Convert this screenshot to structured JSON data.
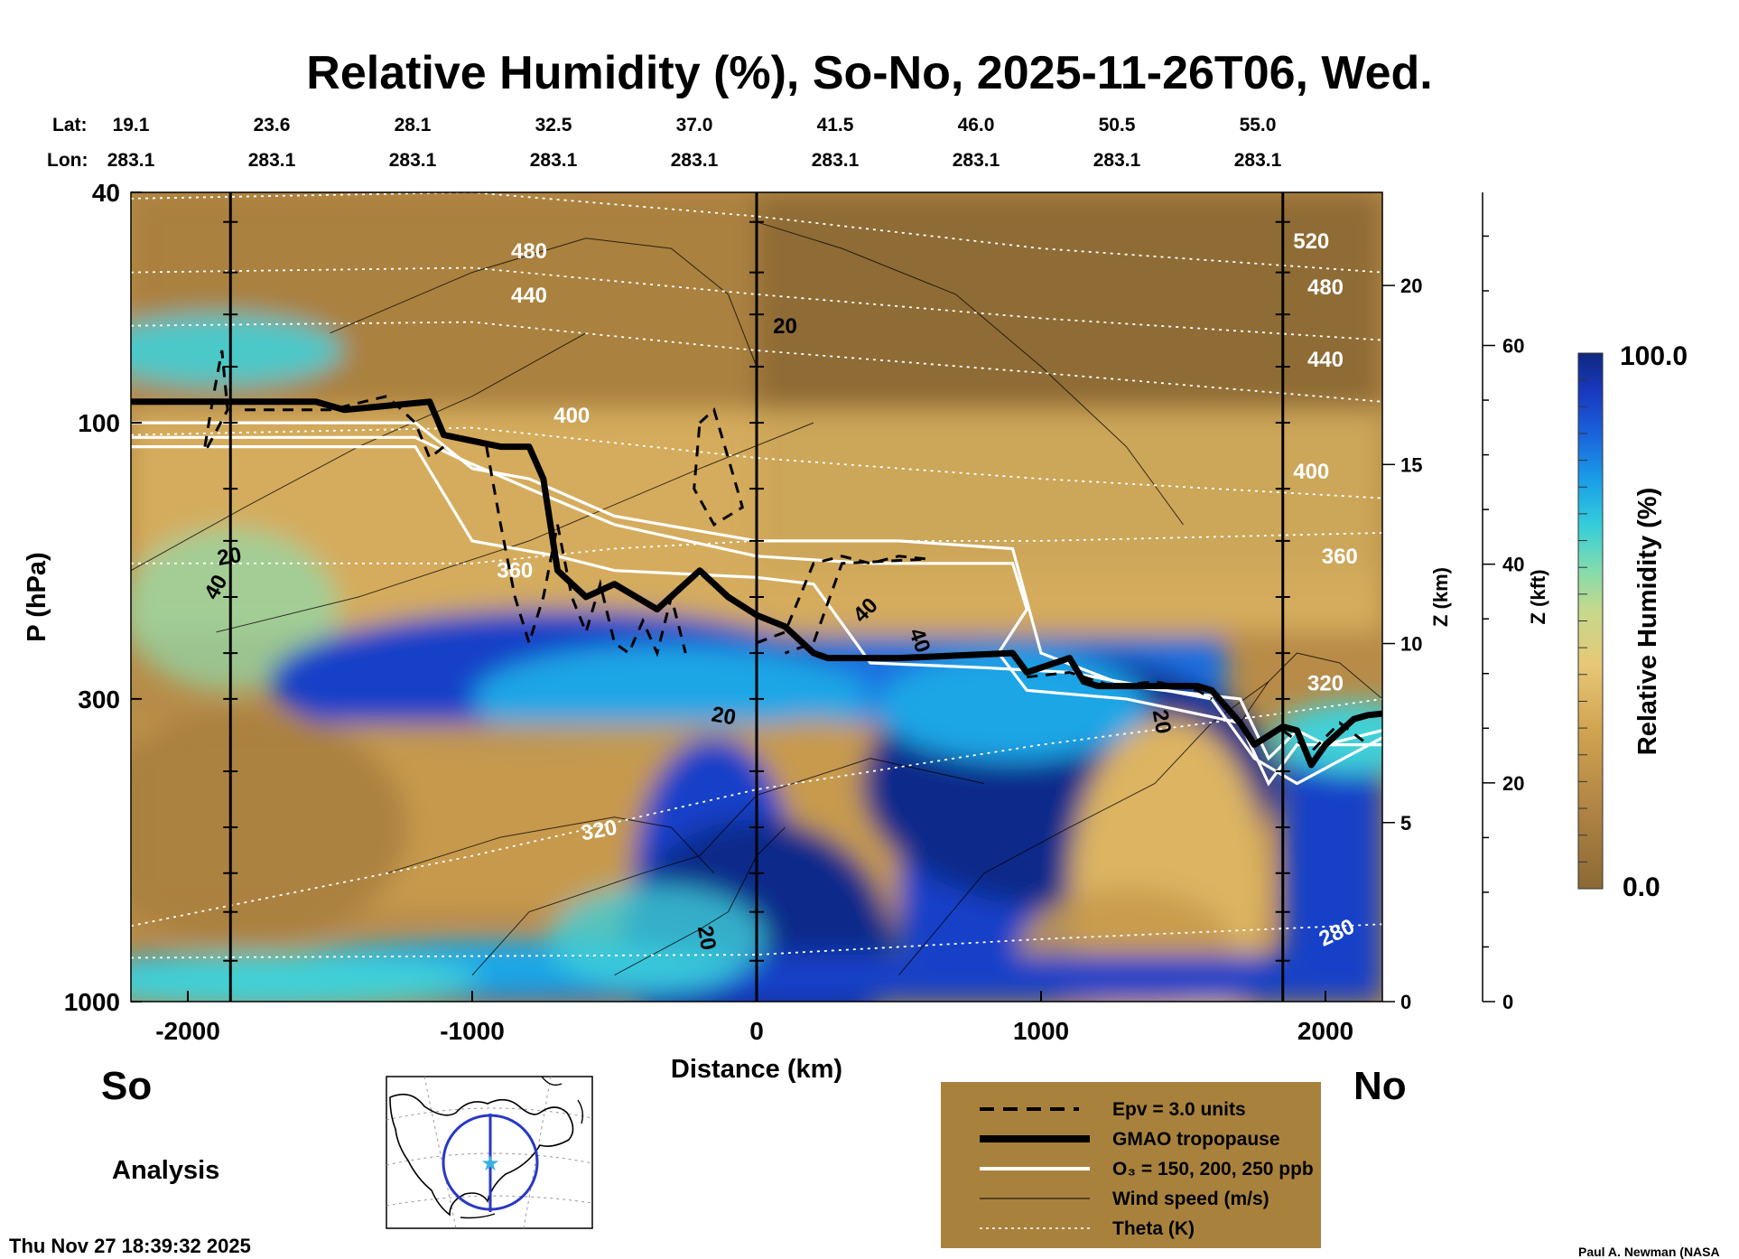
{
  "chart_data": {
    "type": "cross-section",
    "title": "Relative Humidity (%), So-No, 2025-11-26T06, Wed.",
    "header": {
      "lat_label": "Lat:",
      "lon_label": "Lon:",
      "lat": [
        "19.1",
        "23.6",
        "28.1",
        "32.5",
        "37.0",
        "41.5",
        "46.0",
        "50.5",
        "55.0"
      ],
      "lon": [
        "283.1",
        "283.1",
        "283.1",
        "283.1",
        "283.1",
        "283.1",
        "283.1",
        "283.1",
        "283.1"
      ]
    },
    "x_axis": {
      "label": "Distance (km)",
      "range": [
        -2200,
        2200
      ],
      "ticks": [
        "-2000",
        "-1000",
        "0",
        "1000",
        "2000"
      ],
      "tick_values": [
        -2000,
        -1000,
        0,
        1000,
        2000
      ]
    },
    "y_axis": {
      "label": "P (hPa)",
      "scale": "log",
      "range": [
        1000,
        40
      ],
      "ticks": [
        "40",
        "100",
        "300",
        "1000"
      ],
      "tick_values": [
        40,
        100,
        300,
        1000
      ]
    },
    "z_km_axis": {
      "label": "Z (km)",
      "ticks": [
        "0",
        "5",
        "10",
        "15",
        "20"
      ],
      "tick_values": [
        0,
        5,
        10,
        15,
        20
      ]
    },
    "z_kft_axis": {
      "label": "Z (kft)",
      "ticks": [
        "0",
        "20",
        "40",
        "60"
      ],
      "tick_values": [
        0,
        20,
        40,
        60
      ]
    },
    "colorbar": {
      "label": "Relative Humidity (%)",
      "max_label": "100.0",
      "min_label": "0.0",
      "range": [
        0,
        100
      ],
      "colors": [
        "#8b6935",
        "#a97f3f",
        "#c79a4d",
        "#dcb462",
        "#e8c878",
        "#cfd68a",
        "#8fdcae",
        "#3fd0d8",
        "#1aa6e6",
        "#1a6ee0",
        "#1840c8",
        "#102a8a"
      ]
    },
    "vertical_lines_km": [
      -1850,
      0,
      1850
    ],
    "tropopause": {
      "name": "GMAO tropopause",
      "x": [
        -2200,
        -1550,
        -1450,
        -1150,
        -1100,
        -900,
        -800,
        -750,
        -700,
        -600,
        -500,
        -350,
        -200,
        -100,
        0,
        100,
        200,
        250,
        500,
        900,
        950,
        1100,
        1150,
        1200,
        1550,
        1600,
        1700,
        1750,
        1850,
        1900,
        1950,
        2000,
        2100,
        2150,
        2200
      ],
      "p": [
        92,
        92,
        95,
        92,
        105,
        110,
        110,
        125,
        180,
        200,
        190,
        210,
        180,
        200,
        215,
        225,
        250,
        255,
        255,
        250,
        270,
        255,
        280,
        285,
        285,
        290,
        330,
        360,
        335,
        340,
        390,
        360,
        325,
        320,
        318
      ]
    },
    "theta_contours": [
      {
        "label": "280",
        "x": [
          -2200,
          0,
          1000,
          2200
        ],
        "p": [
          840,
          830,
          780,
          735
        ]
      },
      {
        "label": "320",
        "x": [
          -2200,
          -1000,
          0,
          1000,
          1800,
          2200
        ],
        "p": [
          740,
          560,
          430,
          360,
          320,
          300
        ]
      },
      {
        "label": "360",
        "x": [
          -2200,
          -1000,
          -500,
          0,
          1000,
          2200
        ],
        "p": [
          175,
          175,
          165,
          160,
          160,
          155
        ]
      },
      {
        "label": "400",
        "x": [
          -2200,
          -1000,
          0,
          1000,
          2200
        ],
        "p": [
          105,
          102,
          115,
          125,
          135
        ]
      },
      {
        "label": "440",
        "x": [
          -2200,
          -1000,
          0,
          1000,
          2200
        ],
        "p": [
          68,
          67,
          75,
          82,
          92
        ]
      },
      {
        "label": "480",
        "x": [
          -2200,
          -1000,
          0,
          1000,
          2200
        ],
        "p": [
          55,
          54,
          60,
          66,
          72
        ]
      },
      {
        "label": "520",
        "x": [
          -2200,
          -1000,
          0,
          1000,
          2200
        ],
        "p": [
          41,
          40,
          44,
          50,
          55
        ]
      }
    ],
    "wind_speed_labels": [
      "20",
      "20",
      "40",
      "40",
      "20",
      "40",
      "20",
      "20"
    ],
    "location_labels": {
      "left": "So",
      "right": "No"
    },
    "panel_label": "Analysis",
    "legend": [
      {
        "label": "Epv = 3.0 units",
        "style": "dashed"
      },
      {
        "label": "GMAO tropopause",
        "style": "thick"
      },
      {
        "label": "O₃ = 150, 200, 250 ppb",
        "style": "white"
      },
      {
        "label": "Wind speed (m/s)",
        "style": "thin"
      },
      {
        "label": "Theta (K)",
        "style": "dotted"
      }
    ],
    "legend_bg": "#a8823d",
    "timestamp": "Thu Nov 27 18:39:32 2025",
    "credit": "Paul A. Newman (NASA"
  }
}
